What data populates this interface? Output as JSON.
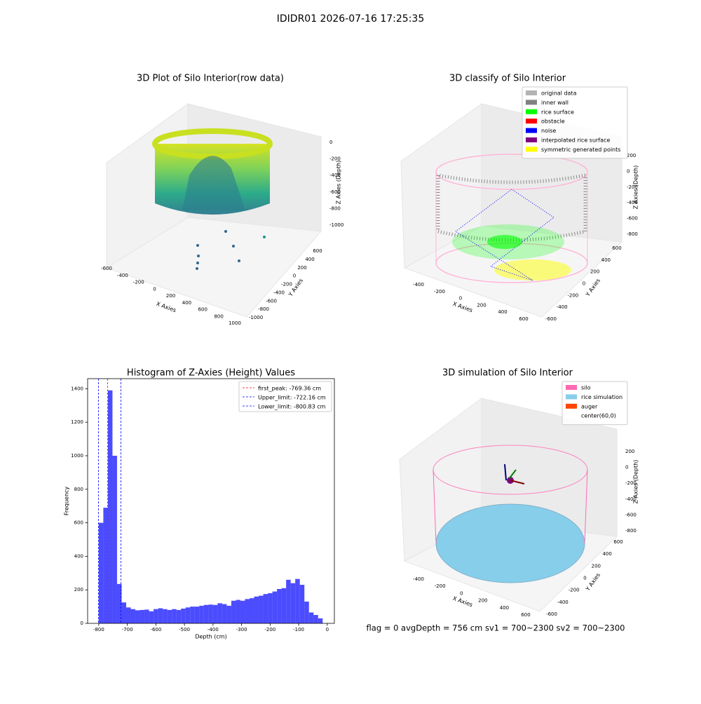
{
  "suptitle": "IDIDR01 2026-07-16 17:25:35",
  "status_text": "flag = 0     avgDepth = 756 cm  sv1 = 700~2300  sv2 = 700~2300",
  "plots3d": [
    {
      "title": "3D Plot of Silo Interior(row data)",
      "xlabel": "X Axies",
      "ylabel": "Y Axies",
      "zlabel": "Z Axies (Depth)",
      "xticks": [
        -600,
        -400,
        -200,
        0,
        200,
        400,
        600,
        800,
        1000
      ],
      "yticks": [
        -1000,
        -800,
        -600,
        -400,
        -200,
        0,
        200,
        400,
        600
      ],
      "zticks": [
        0,
        -200,
        -400,
        -600,
        -800,
        -1000
      ]
    },
    {
      "title": "3D classify of Silo Interior",
      "xlabel": "X Axies",
      "ylabel": "Y Axies",
      "zlabel": "Z Axies (Depth)",
      "xticks": [
        -400,
        -200,
        0,
        200,
        400,
        600
      ],
      "yticks": [
        -600,
        -400,
        -200,
        0,
        200,
        400,
        600
      ],
      "zticks": [
        200,
        0,
        -200,
        -400,
        -600,
        -800
      ],
      "legend": [
        {
          "name": "original data",
          "color": "#b3b3b3"
        },
        {
          "name": "inner wall",
          "color": "#808080"
        },
        {
          "name": "rice surface",
          "color": "#00ff00"
        },
        {
          "name": "obstacle",
          "color": "#ff0000"
        },
        {
          "name": "noise",
          "color": "#0000ff"
        },
        {
          "name": "interpolated rice surface",
          "color": "#800080"
        },
        {
          "name": "symmetric generated points",
          "color": "#ffff00"
        }
      ]
    },
    {
      "title": "3D simulation of Silo Interior",
      "xlabel": "X Axies",
      "ylabel": "Y Axies",
      "zlabel": "Z Axies (Depth)",
      "xticks": [
        -400,
        -200,
        0,
        200,
        400,
        600
      ],
      "yticks": [
        -600,
        -400,
        -200,
        0,
        200,
        400,
        600
      ],
      "zticks": [
        200,
        0,
        -200,
        -400,
        -600,
        -800
      ],
      "legend": [
        {
          "name": "silo",
          "color": "#ff69b4"
        },
        {
          "name": "rice simulation",
          "color": "#87ceeb"
        },
        {
          "name": "auger",
          "color": "#ff4500"
        },
        {
          "name": "center(60,0)",
          "color": "#ffffff"
        }
      ]
    }
  ],
  "chart_data": {
    "type": "histogram",
    "title": "Histogram of Z-Axies (Height) Values",
    "xlabel": "Depth (cm)",
    "ylabel": "Frequency",
    "color": "#0000ff",
    "bins": [
      -800,
      -784,
      -768,
      -752,
      -736,
      -720,
      -704,
      -688,
      -672,
      -656,
      -640,
      -624,
      -608,
      -592,
      -576,
      -560,
      -544,
      -528,
      -512,
      -496,
      -480,
      -464,
      -448,
      -432,
      -416,
      -400,
      -384,
      -368,
      -352,
      -336,
      -320,
      -304,
      -288,
      -272,
      -256,
      -240,
      -224,
      -208,
      -192,
      -176,
      -160,
      -144,
      -128,
      -112,
      -96,
      -80,
      -64,
      -48,
      -32,
      -16
    ],
    "values": [
      600,
      690,
      1390,
      1000,
      235,
      125,
      95,
      85,
      78,
      80,
      82,
      72,
      85,
      90,
      85,
      80,
      85,
      80,
      88,
      95,
      100,
      100,
      105,
      110,
      112,
      110,
      120,
      115,
      105,
      135,
      140,
      135,
      145,
      150,
      160,
      165,
      175,
      180,
      190,
      205,
      210,
      260,
      240,
      265,
      230,
      130,
      65,
      50,
      30
    ],
    "xlim": [
      -839,
      25
    ],
    "ylim": [
      0,
      1460
    ],
    "xticks": [
      -800,
      -700,
      -600,
      -500,
      -400,
      -300,
      -200,
      -100,
      0
    ],
    "yticks": [
      0,
      200,
      400,
      600,
      800,
      1000,
      1200,
      1400
    ],
    "lines": [
      {
        "value": -769.36,
        "label": "first_peak: -769.36 cm",
        "color": "#ff0000"
      },
      {
        "value": -722.16,
        "label": "Upper_limit: -722.16 cm",
        "color": "#0000ff"
      },
      {
        "value": -800.83,
        "label": "Lower_limit: -800.83 cm",
        "color": "#0000ff"
      }
    ],
    "legend_position": "upper right"
  }
}
